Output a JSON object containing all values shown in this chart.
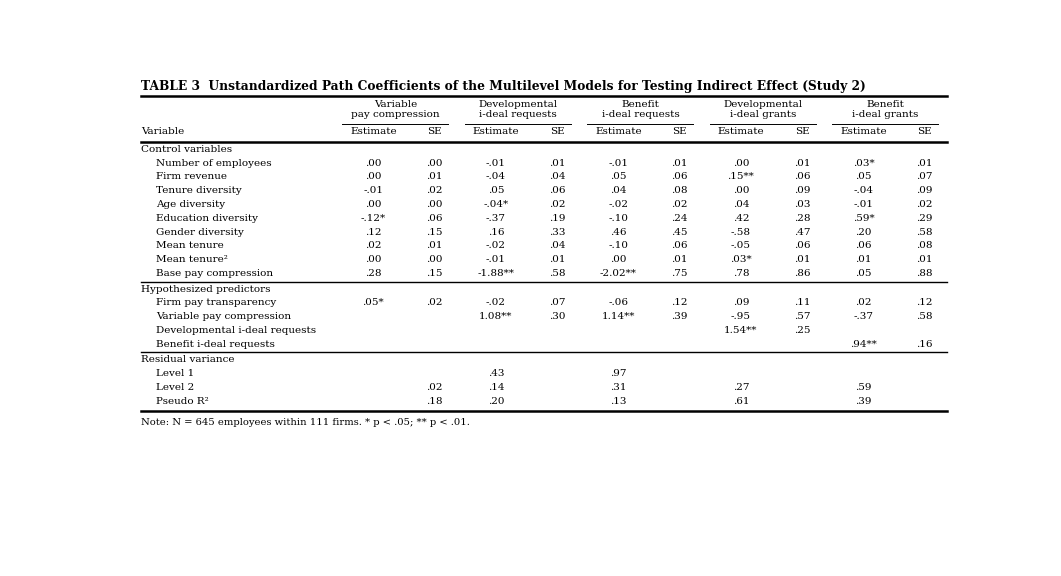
{
  "title": "TABLE 3  Unstandardized Path Coefficients of the Multilevel Models for Testing Indirect Effect (Study 2)",
  "group_labels": [
    "Variable\npay compression",
    "Developmental\ni-deal requests",
    "Benefit\ni-deal requests",
    "Developmental\ni-deal grants",
    "Benefit\ni-deal grants"
  ],
  "first_col_label": "Variable",
  "sections": [
    {
      "header": "Control variables",
      "rows": [
        [
          "Number of employees",
          ".00",
          ".00",
          "-.01",
          ".01",
          "-.01",
          ".01",
          ".00",
          ".01",
          ".03*",
          ".01"
        ],
        [
          "Firm revenue",
          ".00",
          ".01",
          "-.04",
          ".04",
          ".05",
          ".06",
          ".15**",
          ".06",
          ".05",
          ".07"
        ],
        [
          "Tenure diversity",
          "-.01",
          ".02",
          ".05",
          ".06",
          ".04",
          ".08",
          ".00",
          ".09",
          "-.04",
          ".09"
        ],
        [
          "Age diversity",
          ".00",
          ".00",
          "-.04*",
          ".02",
          "-.02",
          ".02",
          ".04",
          ".03",
          "-.01",
          ".02"
        ],
        [
          "Education diversity",
          "-.12*",
          ".06",
          "-.37",
          ".19",
          "-.10",
          ".24",
          ".42",
          ".28",
          ".59*",
          ".29"
        ],
        [
          "Gender diversity",
          ".12",
          ".15",
          ".16",
          ".33",
          ".46",
          ".45",
          "-.58",
          ".47",
          ".20",
          ".58"
        ],
        [
          "Mean tenure",
          ".02",
          ".01",
          "-.02",
          ".04",
          "-.10",
          ".06",
          "-.05",
          ".06",
          ".06",
          ".08"
        ],
        [
          "Mean tenure²",
          ".00",
          ".00",
          "-.01",
          ".01",
          ".00",
          ".01",
          ".03*",
          ".01",
          ".01",
          ".01"
        ],
        [
          "Base pay compression",
          ".28",
          ".15",
          "-1.88**",
          ".58",
          "-2.02**",
          ".75",
          ".78",
          ".86",
          ".05",
          ".88"
        ]
      ]
    },
    {
      "header": "Hypothesized predictors",
      "rows": [
        [
          "Firm pay transparency",
          ".05*",
          ".02",
          "-.02",
          ".07",
          "-.06",
          ".12",
          ".09",
          ".11",
          ".02",
          ".12"
        ],
        [
          "Variable pay compression",
          "",
          "",
          "1.08**",
          ".30",
          "1.14**",
          ".39",
          "-.95",
          ".57",
          "-.37",
          ".58"
        ],
        [
          "Developmental i-deal requests",
          "",
          "",
          "",
          "",
          "",
          "",
          "1.54**",
          ".25",
          "",
          ""
        ],
        [
          "Benefit i-deal requests",
          "",
          "",
          "",
          "",
          "",
          "",
          "",
          "",
          ".94**",
          ".16"
        ]
      ]
    },
    {
      "header": "Residual variance",
      "rows": [
        [
          "Level 1",
          "",
          "",
          ".43",
          "",
          ".97",
          "",
          "",
          "",
          "",
          ""
        ],
        [
          "Level 2",
          "",
          ".02",
          ".14",
          "",
          ".31",
          "",
          ".27",
          "",
          ".59",
          ""
        ],
        [
          "Pseudo R²",
          "",
          ".18",
          ".20",
          "",
          ".13",
          "",
          ".61",
          "",
          ".39",
          ""
        ]
      ]
    }
  ],
  "note": "Note: N = 645 employees within 111 firms. * p < .05; ** p < .01."
}
